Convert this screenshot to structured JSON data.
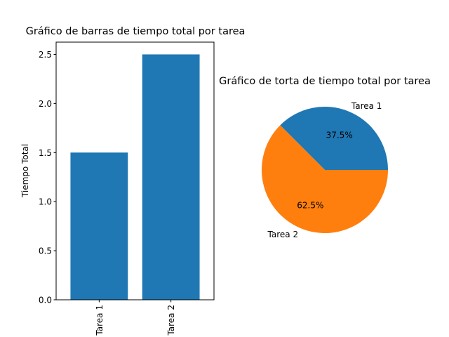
{
  "chart_data": [
    {
      "type": "bar",
      "title": "Gráfico de barras de tiempo total por tarea",
      "xlabel": "",
      "ylabel": "Tiempo Total",
      "categories": [
        "Tarea 1",
        "Tarea 2"
      ],
      "values": [
        1.5,
        2.5
      ],
      "ylim": [
        0,
        2.625
      ],
      "yticks": [
        "0.0",
        "0.5",
        "1.0",
        "1.5",
        "2.0",
        "2.5"
      ],
      "ytick_values": [
        0,
        0.5,
        1.0,
        1.5,
        2.0,
        2.5
      ],
      "grid": false,
      "color": "#1f77b4",
      "xtick_rotation": "vertical"
    },
    {
      "type": "pie",
      "title": "Gráfico de torta de tiempo total por tarea",
      "labels": [
        "Tarea 1",
        "Tarea 2"
      ],
      "values": [
        1.5,
        2.5
      ],
      "percent_labels": [
        "37.5%",
        "62.5%"
      ],
      "colors": [
        "#1f77b4",
        "#ff7f0e"
      ]
    }
  ]
}
